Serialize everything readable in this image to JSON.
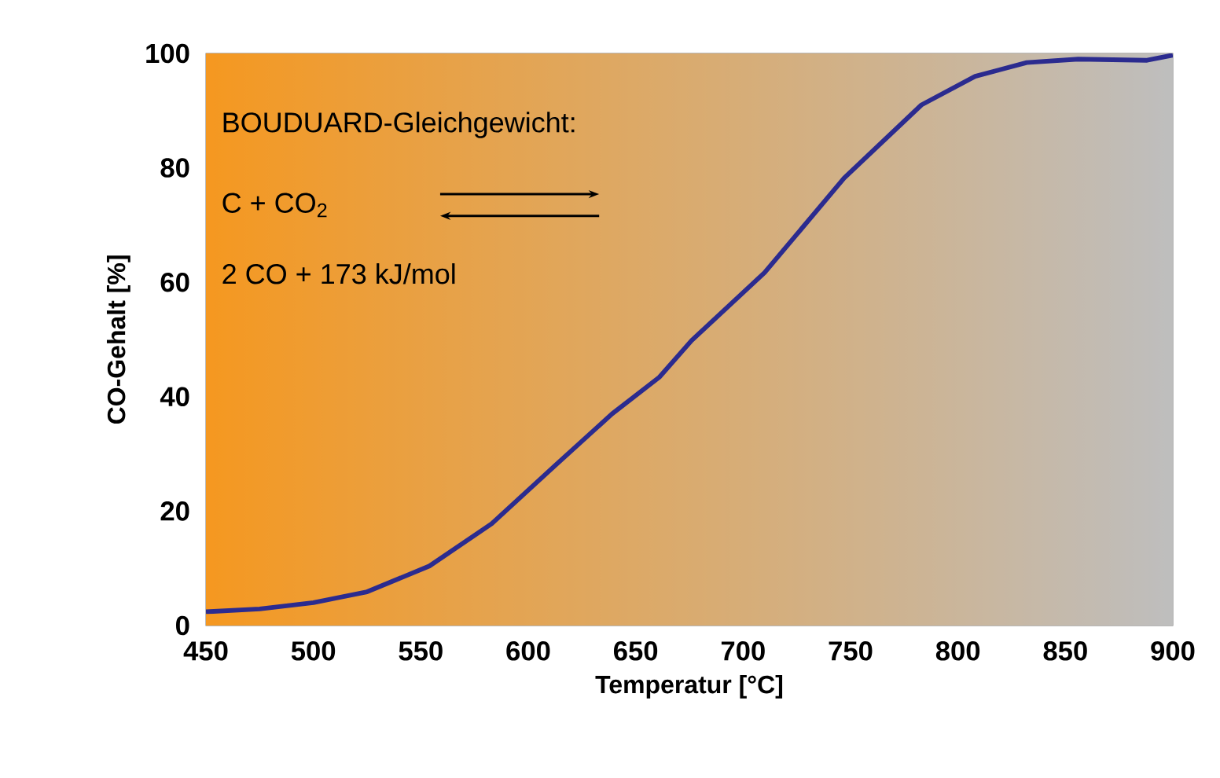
{
  "chart_data": {
    "type": "line",
    "xlabel": "Temperatur [°C]",
    "ylabel": "CO-Gehalt [%]",
    "annotations": [
      "BOUDUARD-Gleichgewicht:",
      "C + CO$_{2}$",
      "2 CO + 173 kJ/mol"
    ],
    "xlim": [
      450,
      900
    ],
    "xticks": [
      450,
      500,
      550,
      600,
      650,
      700,
      750,
      800,
      850,
      900
    ],
    "ylim": [
      0,
      100
    ],
    "yticks": [
      0,
      20,
      40,
      60,
      80,
      100
    ],
    "grid": "y",
    "series": [
      {
        "color": "#2b2b8f",
        "x": [
          450,
          475,
          500,
          525,
          554,
          583,
          612,
          639,
          661,
          676,
          710,
          747,
          783,
          808,
          832,
          856,
          888,
          900
        ],
        "values": [
          2.4,
          2.9,
          4,
          5.9,
          10.4,
          17.8,
          27.8,
          37,
          43.4,
          49.8,
          61.7,
          78.2,
          91,
          96,
          98.4,
          99,
          98.8,
          99.7
        ]
      }
    ]
  }
}
